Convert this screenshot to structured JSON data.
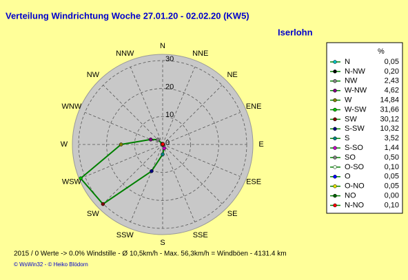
{
  "chart_data": {
    "type": "radar",
    "title": "Verteilung Windrichtung   Woche 27.01.20 - 02.02.20 (KW5)",
    "subtitle": "Iserlohn",
    "axis_labels": [
      "N",
      "NNW",
      "NW",
      "WNW",
      "W",
      "WSW",
      "SW",
      "SSW",
      "S",
      "SSE",
      "SE",
      "ESE",
      "E",
      "ENE",
      "NE",
      "NNE"
    ],
    "categories": [
      "N",
      "N-NW",
      "NW",
      "W-NW",
      "W",
      "W-SW",
      "SW",
      "S-SW",
      "S",
      "S-SO",
      "SO",
      "O-SO",
      "O",
      "O-NO",
      "NO",
      "N-NO"
    ],
    "values": [
      0.05,
      0.2,
      2.43,
      4.62,
      14.84,
      31.66,
      30.12,
      10.32,
      3.52,
      1.44,
      0.5,
      0.1,
      0.05,
      0.05,
      0.0,
      0.1
    ],
    "value_labels": [
      "0,05",
      "0,20",
      "2,43",
      "4,62",
      "14,84",
      "31,66",
      "30,12",
      "10,32",
      "3,52",
      "1,44",
      "0,50",
      "0,10",
      "0,05",
      "0,05",
      "0,00",
      "0,10"
    ],
    "colors": [
      "#00c0c0",
      "#000000",
      "#808080",
      "#800080",
      "#808000",
      "#00c000",
      "#800000",
      "#000080",
      "#008080",
      "#c000c0",
      "#808080",
      "#e0ffe0",
      "#0000ff",
      "#e0e000",
      "#006000",
      "#ff0000"
    ],
    "line_color": "#008000",
    "legend_header": "%",
    "rlim": [
      0,
      30
    ],
    "rticks": [
      0,
      10,
      20,
      30
    ],
    "grid": true,
    "footer": "2015 / 0 Werte  -> 0.0% Windstille   -   Ø 10,5km/h   -   Max. 56,3km/h = Windböen   -   4131.4 km",
    "credit": "© WsWin32  -  © Heiko Blödorn"
  }
}
